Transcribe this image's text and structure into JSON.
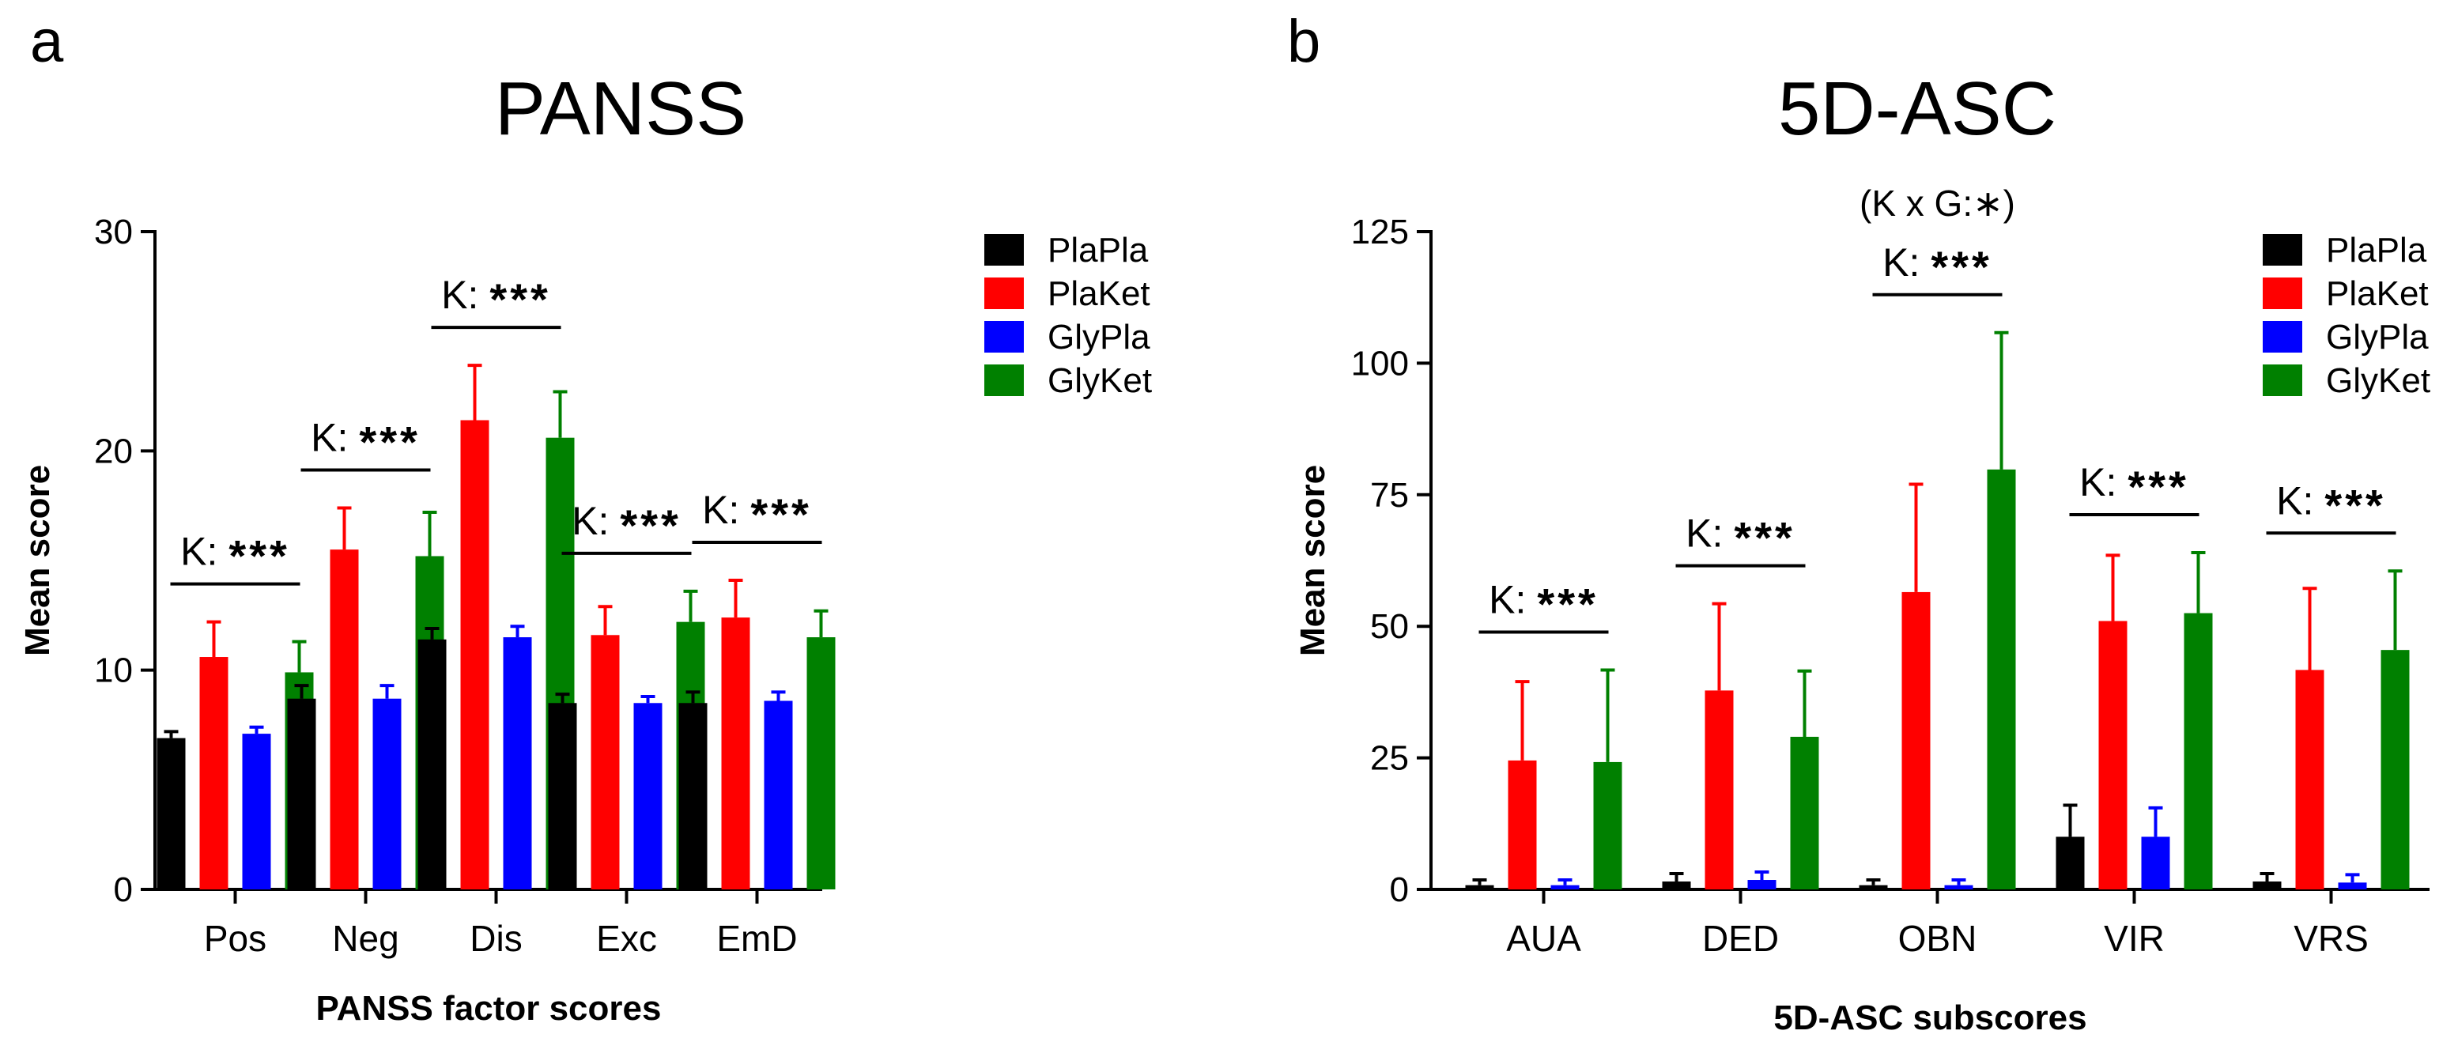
{
  "colors": {
    "PlaPla": "#000000",
    "PlaKet": "#ff0000",
    "GlyPla": "#0000ff",
    "GlyKet": "#008000"
  },
  "chart_data": [
    {
      "panel": "a",
      "type": "bar",
      "title": "PANSS",
      "xlabel": "PANSS factor scores",
      "ylabel": "Mean score",
      "ylim": [
        0,
        30
      ],
      "yticks": [
        0,
        10,
        20,
        30
      ],
      "categories": [
        "Pos",
        "Neg",
        "Dis",
        "Exc",
        "EmD"
      ],
      "legend_position": "top-right",
      "series": [
        {
          "name": "PlaPla",
          "values": [
            6.9,
            8.7,
            11.4,
            8.5,
            8.5
          ],
          "errors": [
            0.3,
            0.6,
            0.5,
            0.4,
            0.5
          ]
        },
        {
          "name": "PlaKet",
          "values": [
            10.6,
            15.5,
            21.4,
            11.6,
            12.4
          ],
          "errors": [
            1.6,
            1.9,
            2.5,
            1.3,
            1.7
          ]
        },
        {
          "name": "GlyPla",
          "values": [
            7.1,
            8.7,
            11.5,
            8.5,
            8.6
          ],
          "errors": [
            0.3,
            0.6,
            0.5,
            0.3,
            0.4
          ]
        },
        {
          "name": "GlyKet",
          "values": [
            9.9,
            15.2,
            20.6,
            12.2,
            11.5
          ],
          "errors": [
            1.4,
            2.0,
            2.1,
            1.4,
            1.2
          ]
        }
      ],
      "significance": [
        {
          "category_index": 0,
          "label": "K:",
          "stars": "***"
        },
        {
          "category_index": 1,
          "label": "K:",
          "stars": "***"
        },
        {
          "category_index": 2,
          "label": "K:",
          "stars": "***"
        },
        {
          "category_index": 3,
          "label": "K:",
          "stars": "***"
        },
        {
          "category_index": 4,
          "label": "K:",
          "stars": "***"
        }
      ]
    },
    {
      "panel": "b",
      "type": "bar",
      "title": "5D-ASC",
      "xlabel": "5D-ASC subscores",
      "ylabel": "Mean score",
      "ylim": [
        0,
        125
      ],
      "yticks": [
        0,
        25,
        50,
        75,
        100,
        125
      ],
      "categories": [
        "AUA",
        "DED",
        "OBN",
        "VIR",
        "VRS"
      ],
      "legend_position": "top-right",
      "series": [
        {
          "name": "PlaPla",
          "values": [
            0.8,
            1.5,
            0.8,
            10.0,
            1.5
          ],
          "errors": [
            1.0,
            1.5,
            1.0,
            6.0,
            1.5
          ]
        },
        {
          "name": "PlaKet",
          "values": [
            24.5,
            37.8,
            56.5,
            51.0,
            41.7
          ],
          "errors": [
            15.0,
            16.5,
            20.5,
            12.5,
            15.5
          ]
        },
        {
          "name": "GlyPla",
          "values": [
            0.8,
            1.8,
            0.8,
            10.0,
            1.3
          ],
          "errors": [
            1.0,
            1.5,
            1.0,
            5.5,
            1.5
          ]
        },
        {
          "name": "GlyKet",
          "values": [
            24.2,
            29.0,
            79.8,
            52.5,
            45.5
          ],
          "errors": [
            17.5,
            12.5,
            26.0,
            11.5,
            15.0
          ]
        }
      ],
      "significance": [
        {
          "category_index": 0,
          "label": "K:",
          "stars": "***"
        },
        {
          "category_index": 1,
          "label": "K:",
          "stars": "***"
        },
        {
          "category_index": 2,
          "label": "K:",
          "stars": "***",
          "extra": "(K x G:∗)"
        },
        {
          "category_index": 3,
          "label": "K:",
          "stars": "***"
        },
        {
          "category_index": 4,
          "label": "K:",
          "stars": "***"
        }
      ]
    }
  ]
}
